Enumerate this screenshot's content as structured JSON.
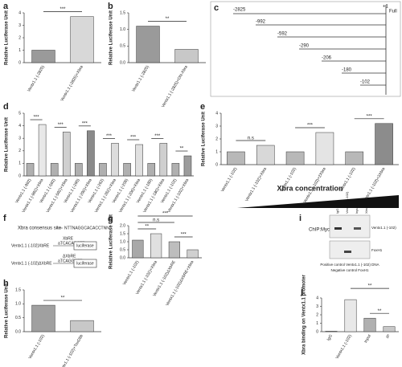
{
  "chart_data": [
    {
      "type": "bar",
      "label": "a",
      "ylabel": "Relative Luciferase Unit",
      "categories": [
        "Ventx1.1 (-2825)",
        "Ventx1.1 (-2825)+Xbra"
      ],
      "values": [
        1.0,
        3.7
      ],
      "colors": [
        "#9a9a9a",
        "#d8d8d8"
      ],
      "ylim": [
        0,
        4
      ],
      "yticks": [
        0,
        1,
        2,
        3,
        4
      ],
      "annotations": [
        "***"
      ]
    },
    {
      "type": "bar",
      "label": "b",
      "ylabel": "Relative Luciferase Unit",
      "categories": [
        "Ventx1.1 (-2825)",
        "Ventx1.1 (-2825)+DN-Xbra"
      ],
      "values": [
        1.1,
        0.4
      ],
      "colors": [
        "#9a9a9a",
        "#c8c8c8"
      ],
      "ylim": [
        0,
        1.5
      ],
      "yticks": [
        {
          "value": 0,
          "label": "0.0"
        },
        {
          "value": 0.5,
          "label": "0.5"
        },
        {
          "value": 1,
          "label": "1.0"
        },
        {
          "value": 1.5,
          "label": "1.5"
        }
      ],
      "annotations": [
        "**"
      ]
    },
    {
      "type": "bar",
      "label": "d",
      "ylabel": "Relative Luciferase Unit",
      "categories": [
        "Ventx1.1 (-992)",
        "Ventx1.1 (-992)+Xbra",
        "Ventx1.1 (-592)",
        "Ventx1.1 (-592)+Xbra",
        "Ventx1.1 (-290)",
        "Ventx1.1 (-290)+Xbra",
        "Ventx1.1 (-262)",
        "Ventx1.1 (-262)+Xbra",
        "Ventx1.1 (-206)",
        "Ventx1.1 (-206)+Xbra",
        "Ventx1.1 (-180)",
        "Ventx1.1 (-180)+Xbra",
        "Ventx1.1 (-102)",
        "Ventx1.1 (-102)+Xbra"
      ],
      "values": [
        1.0,
        4.1,
        1.0,
        3.5,
        1.0,
        3.6,
        1.0,
        2.6,
        1.0,
        2.5,
        1.0,
        2.6,
        1.0,
        1.6
      ],
      "colors": [
        "#b0b0b0",
        "#e8e8e8",
        "#b0b0b0",
        "#d0d0d0",
        "#b0b0b0",
        "#8a8a8a",
        "#b0b0b0",
        "#dcdcdc",
        "#b0b0b0",
        "#e0e0e0",
        "#b0b0b0",
        "#cfcfcf",
        "#b0b0b0",
        "#9c9c9c"
      ],
      "ylim": [
        0,
        5
      ],
      "yticks": [
        0,
        1,
        2,
        3,
        4,
        5
      ],
      "annotations": [
        "***",
        "***",
        "***",
        "***",
        "***",
        "***",
        "**"
      ]
    },
    {
      "type": "bar",
      "label": "e",
      "ylabel": "Relative Luciferase Unit",
      "xlabel": "Xbra concentration",
      "categories": [
        "Ventx1.1 (-102)",
        "Ventx1.1 (-102)+Xbra",
        "Ventx1.1 (-102)",
        "Ventx1.1 (-102)+2Xbra",
        "Ventx1.1 (-102)",
        "Ventx1.1 (-102)+3Xbra"
      ],
      "values": [
        1.0,
        1.5,
        1.0,
        2.5,
        1.0,
        3.2
      ],
      "colors": [
        "#b8b8b8",
        "#d8d8d8",
        "#b8b8b8",
        "#e4e4e4",
        "#b8b8b8",
        "#8c8c8c"
      ],
      "ylim": [
        0,
        4
      ],
      "yticks": [
        0,
        1,
        2,
        3,
        4
      ],
      "annotations": [
        "n.s",
        "***",
        "***"
      ]
    },
    {
      "type": "bar",
      "label": "g",
      "ylabel": "Relative Luciferase Unit",
      "categories": [
        "Ventx1.1 (-102)",
        "Ventx1.1 (-102)+Xbra",
        "Ventx1.1 (-102)ΔXbRE",
        "Ventx1.1 (-102)ΔXbRE+Xbra"
      ],
      "values": [
        1.1,
        1.5,
        1.0,
        0.5
      ],
      "colors": [
        "#a8a8a8",
        "#e0e0e0",
        "#bdbdbd",
        "#d0d0d0"
      ],
      "ylim": [
        0,
        2
      ],
      "yticks": [
        {
          "value": 0,
          "label": "0.0"
        },
        {
          "value": 0.5,
          "label": "0.5"
        },
        {
          "value": 1,
          "label": "1.0"
        },
        {
          "value": 1.5,
          "label": "1.5"
        },
        {
          "value": 2,
          "label": "2.0"
        }
      ],
      "annotations": [
        "**",
        "n.s",
        "***",
        "***"
      ]
    },
    {
      "type": "bar",
      "label": "h",
      "ylabel": "Relative Luciferase Unit",
      "categories": [
        "Ventx1.1 (-102)",
        "Ventx1.1 (-102)+ToxD5b"
      ],
      "values": [
        0.95,
        0.4
      ],
      "colors": [
        "#a0a0a0",
        "#c8c8c8"
      ],
      "ylim": [
        0,
        1.5
      ],
      "yticks": [
        {
          "value": 0,
          "label": "0.0"
        },
        {
          "value": 0.5,
          "label": "0.5"
        },
        {
          "value": 1,
          "label": "1.0"
        },
        {
          "value": 1.5,
          "label": "1.5"
        }
      ],
      "annotations": [
        "**"
      ]
    },
    {
      "type": "bar",
      "label": "j",
      "ylabel": "Xbra binding on Ventx1.1 promoter",
      "categories": [
        "IgG",
        "Ventx1.1 (-102)",
        "Input",
        "IP"
      ],
      "values": [
        0.05,
        3.8,
        1.6,
        0.6
      ],
      "colors": [
        "#909090",
        "#e8e8e8",
        "#b0b0b0",
        "#c8c8c8"
      ],
      "ylim": [
        0,
        4
      ],
      "yticks": [
        0,
        1,
        2,
        3,
        4
      ],
      "annotations": [
        "**",
        "**"
      ]
    }
  ],
  "diagram_c": {
    "label": "c",
    "start": "-2825",
    "end": "+1",
    "full": "Full",
    "constructs": [
      "-992",
      "-592",
      "-290",
      "-206",
      "-180",
      "-102"
    ]
  },
  "diagram_f": {
    "label": "f",
    "consensus_name": "Xbra consensus site",
    "consensus": "NTTNAGGCACACCTNN",
    "rows": [
      {
        "name": "Ventx1.1 (-102)XbRE",
        "site": "XbRE",
        "seq": "aTCACAGCTT",
        "reporter": "luciferase"
      },
      {
        "name": "Ventx1.1 (-102)ΔXbRE",
        "site": "ΔXbRE",
        "seq": "aTCAGGCTT",
        "reporter": "luciferase"
      }
    ]
  },
  "diagram_i": {
    "label": "i",
    "row1": "ChIP:Myc",
    "lanes": [
      "IgG",
      "Ventx1.1 (-102)",
      "Input",
      "Xbra-Myc"
    ],
    "band1": "Ventx1.1 (-102)",
    "band2": "FoxH1",
    "caption1": "Positive control Ventx1.1 (-102) DNA",
    "caption2": "Negative control FoxH1"
  }
}
